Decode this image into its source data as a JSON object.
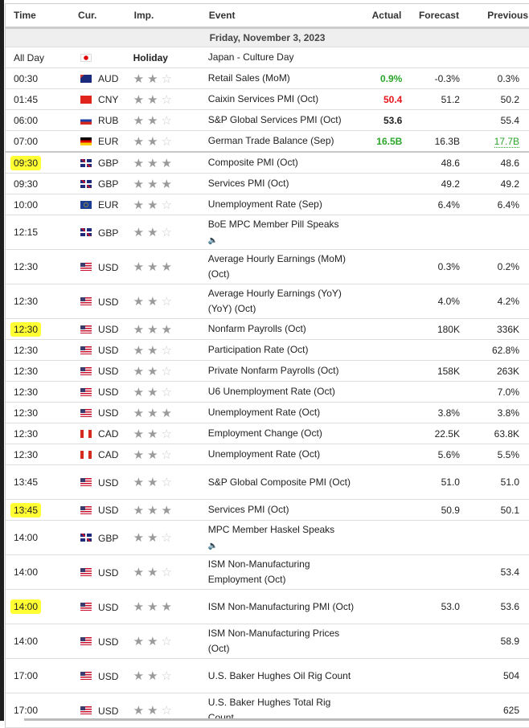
{
  "headers": {
    "time": "Time",
    "cur": "Cur.",
    "imp": "Imp.",
    "event": "Event",
    "actual": "Actual",
    "forecast": "Forecast",
    "previous": "Previous"
  },
  "date": "Friday, November 3, 2023",
  "colors": {
    "positive": "#2aa52a",
    "negative": "#e8141b",
    "highlight": "#ffff33"
  },
  "rows": [
    {
      "time": "All Day",
      "flag": "JP",
      "cur": "",
      "imp": "Holiday",
      "event": "Japan - Culture Day",
      "actual": "",
      "forecast": "",
      "previous": ""
    },
    {
      "time": "00:30",
      "flag": "AU",
      "cur": "AUD",
      "stars": 2,
      "event": "Retail Sales (MoM)",
      "actual": "0.9%",
      "actual_color": "green",
      "forecast": "-0.3%",
      "previous": "0.3%"
    },
    {
      "time": "01:45",
      "flag": "CN",
      "cur": "CNY",
      "stars": 2,
      "event": "Caixin Services PMI (Oct)",
      "actual": "50.4",
      "actual_color": "red",
      "forecast": "51.2",
      "previous": "50.2"
    },
    {
      "time": "06:00",
      "flag": "RU",
      "cur": "RUB",
      "stars": 2,
      "event": "S&P Global Services PMI (Oct)",
      "actual": "53.6",
      "forecast": "",
      "previous": "55.4"
    },
    {
      "time": "07:00",
      "flag": "DE",
      "cur": "EUR",
      "stars": 2,
      "event": "German Trade Balance (Sep)",
      "actual": "16.5B",
      "actual_color": "green",
      "forecast": "16.3B",
      "previous": "17.7B",
      "previous_color": "green",
      "sep": true
    },
    {
      "time": "09:30",
      "hl": true,
      "flag": "GB",
      "cur": "GBP",
      "stars": 3,
      "event": "Composite PMI (Oct)",
      "actual": "",
      "forecast": "48.6",
      "previous": "48.6"
    },
    {
      "time": "09:30",
      "flag": "GB",
      "cur": "GBP",
      "stars": 3,
      "event": "Services PMI (Oct)",
      "actual": "",
      "forecast": "49.2",
      "previous": "49.2"
    },
    {
      "time": "10:00",
      "flag": "EU",
      "cur": "EUR",
      "stars": 2,
      "event": "Unemployment Rate (Sep)",
      "actual": "",
      "forecast": "6.4%",
      "previous": "6.4%"
    },
    {
      "time": "12:15",
      "flag": "GB",
      "cur": "GBP",
      "stars": 2,
      "event": "BoE MPC Member Pill Speaks",
      "speech": true,
      "actual": "",
      "forecast": "",
      "previous": ""
    },
    {
      "time": "12:30",
      "flag": "US",
      "cur": "USD",
      "stars": 3,
      "event": "Average Hourly Earnings (MoM) (Oct)",
      "tall": true,
      "actual": "",
      "forecast": "0.3%",
      "previous": "0.2%"
    },
    {
      "time": "12:30",
      "flag": "US",
      "cur": "USD",
      "stars": 2,
      "event": "Average Hourly Earnings (YoY) (YoY) (Oct)",
      "tall": true,
      "actual": "",
      "forecast": "4.0%",
      "previous": "4.2%"
    },
    {
      "time": "12:30",
      "hl": true,
      "flag": "US",
      "cur": "USD",
      "stars": 3,
      "event": "Nonfarm Payrolls (Oct)",
      "actual": "",
      "forecast": "180K",
      "previous": "336K"
    },
    {
      "time": "12:30",
      "flag": "US",
      "cur": "USD",
      "stars": 2,
      "event": "Participation Rate (Oct)",
      "actual": "",
      "forecast": "",
      "previous": "62.8%"
    },
    {
      "time": "12:30",
      "flag": "US",
      "cur": "USD",
      "stars": 2,
      "event": "Private Nonfarm Payrolls (Oct)",
      "actual": "",
      "forecast": "158K",
      "previous": "263K"
    },
    {
      "time": "12:30",
      "flag": "US",
      "cur": "USD",
      "stars": 2,
      "event": "U6 Unemployment Rate (Oct)",
      "actual": "",
      "forecast": "",
      "previous": "7.0%"
    },
    {
      "time": "12:30",
      "flag": "US",
      "cur": "USD",
      "stars": 3,
      "event": "Unemployment Rate (Oct)",
      "actual": "",
      "forecast": "3.8%",
      "previous": "3.8%"
    },
    {
      "time": "12:30",
      "flag": "CA",
      "cur": "CAD",
      "stars": 2,
      "event": "Employment Change (Oct)",
      "actual": "",
      "forecast": "22.5K",
      "previous": "63.8K"
    },
    {
      "time": "12:30",
      "flag": "CA",
      "cur": "CAD",
      "stars": 2,
      "event": "Unemployment Rate (Oct)",
      "actual": "",
      "forecast": "5.6%",
      "previous": "5.5%"
    },
    {
      "time": "13:45",
      "flag": "US",
      "cur": "USD",
      "stars": 2,
      "event": "S&P Global Composite PMI (Oct)",
      "tall": true,
      "actual": "",
      "forecast": "51.0",
      "previous": "51.0"
    },
    {
      "time": "13:45",
      "hl": true,
      "flag": "US",
      "cur": "USD",
      "stars": 3,
      "event": "Services PMI (Oct)",
      "actual": "",
      "forecast": "50.9",
      "previous": "50.1"
    },
    {
      "time": "14:00",
      "flag": "GB",
      "cur": "GBP",
      "stars": 2,
      "event": "MPC Member Haskel Speaks",
      "speech": true,
      "actual": "",
      "forecast": "",
      "previous": ""
    },
    {
      "time": "14:00",
      "flag": "US",
      "cur": "USD",
      "stars": 2,
      "event": "ISM Non-Manufacturing Employment (Oct)",
      "tall": true,
      "actual": "",
      "forecast": "",
      "previous": "53.4"
    },
    {
      "time": "14:00",
      "hl": true,
      "flag": "US",
      "cur": "USD",
      "stars": 3,
      "event": "ISM Non-Manufacturing PMI (Oct)",
      "tall": true,
      "actual": "",
      "forecast": "53.0",
      "previous": "53.6"
    },
    {
      "time": "14:00",
      "flag": "US",
      "cur": "USD",
      "stars": 2,
      "event": "ISM Non-Manufacturing Prices (Oct)",
      "tall": true,
      "actual": "",
      "forecast": "",
      "previous": "58.9"
    },
    {
      "time": "17:00",
      "flag": "US",
      "cur": "USD",
      "stars": 2,
      "event": "U.S. Baker Hughes Oil Rig Count",
      "tall": true,
      "actual": "",
      "forecast": "",
      "previous": "504"
    },
    {
      "time": "17:00",
      "flag": "US",
      "cur": "USD",
      "stars": 2,
      "event": "U.S. Baker Hughes Total Rig Count",
      "tall": true,
      "actual": "",
      "forecast": "",
      "previous": "625"
    }
  ]
}
